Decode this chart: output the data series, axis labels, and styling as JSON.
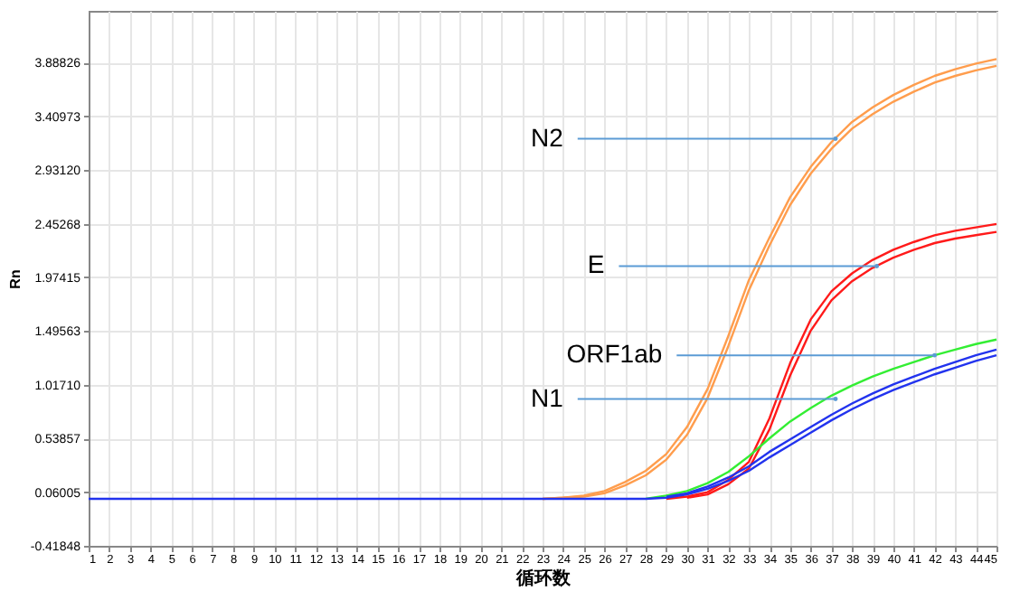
{
  "chart_data": {
    "type": "line",
    "xlabel": "循环数",
    "ylabel": "Rn",
    "x": [
      1,
      2,
      3,
      4,
      5,
      6,
      7,
      8,
      9,
      10,
      11,
      12,
      13,
      14,
      15,
      16,
      17,
      18,
      19,
      20,
      21,
      22,
      23,
      24,
      25,
      26,
      27,
      28,
      29,
      30,
      31,
      32,
      33,
      34,
      35,
      36,
      37,
      38,
      39,
      40,
      41,
      42,
      43,
      44,
      45
    ],
    "series": [
      {
        "color": "#ff9d4d",
        "values": [
          null,
          null,
          null,
          null,
          null,
          null,
          null,
          null,
          null,
          null,
          null,
          null,
          null,
          null,
          null,
          null,
          null,
          null,
          null,
          null,
          null,
          null,
          0,
          0.01,
          0.03,
          0.07,
          0.15,
          0.25,
          0.4,
          0.64,
          0.98,
          1.45,
          1.95,
          2.33,
          2.69,
          2.96,
          3.18,
          3.36,
          3.49,
          3.6,
          3.69,
          3.77,
          3.83,
          3.88,
          3.92
        ]
      },
      {
        "color": "#ff9d4d",
        "values": [
          null,
          null,
          null,
          null,
          null,
          null,
          null,
          null,
          null,
          null,
          null,
          null,
          null,
          null,
          null,
          null,
          null,
          null,
          null,
          null,
          null,
          null,
          0,
          0.01,
          0.02,
          0.05,
          0.12,
          0.21,
          0.35,
          0.57,
          0.9,
          1.36,
          1.86,
          2.26,
          2.62,
          2.9,
          3.12,
          3.3,
          3.43,
          3.54,
          3.63,
          3.71,
          3.77,
          3.82,
          3.86
        ]
      },
      {
        "color": "#ff1a1a",
        "values": [
          null,
          null,
          null,
          null,
          null,
          null,
          null,
          null,
          null,
          null,
          null,
          null,
          null,
          null,
          null,
          null,
          null,
          null,
          null,
          null,
          null,
          null,
          null,
          null,
          null,
          null,
          null,
          null,
          0,
          0.02,
          0.06,
          0.17,
          0.33,
          0.72,
          1.21,
          1.6,
          1.85,
          2.01,
          2.13,
          2.22,
          2.29,
          2.35,
          2.39,
          2.42,
          2.45
        ]
      },
      {
        "color": "#ff1a1a",
        "values": [
          null,
          null,
          null,
          null,
          null,
          null,
          null,
          null,
          null,
          null,
          null,
          null,
          null,
          null,
          null,
          null,
          null,
          null,
          null,
          null,
          null,
          null,
          null,
          null,
          null,
          null,
          null,
          null,
          null,
          0.01,
          0.04,
          0.13,
          0.27,
          0.62,
          1.1,
          1.5,
          1.77,
          1.94,
          2.06,
          2.15,
          2.22,
          2.28,
          2.32,
          2.35,
          2.38
        ]
      },
      {
        "color": "#33ee33",
        "values": [
          null,
          null,
          null,
          null,
          null,
          null,
          null,
          null,
          null,
          null,
          null,
          null,
          null,
          null,
          null,
          null,
          null,
          null,
          null,
          null,
          null,
          null,
          null,
          null,
          null,
          null,
          null,
          0,
          0.03,
          0.07,
          0.14,
          0.24,
          0.38,
          0.54,
          0.69,
          0.81,
          0.92,
          1.01,
          1.09,
          1.16,
          1.22,
          1.28,
          1.33,
          1.38,
          1.42
        ]
      },
      {
        "color": "#2233ee",
        "values": [
          null,
          null,
          null,
          null,
          null,
          null,
          null,
          null,
          null,
          null,
          null,
          null,
          null,
          null,
          null,
          null,
          null,
          null,
          null,
          null,
          null,
          null,
          null,
          null,
          null,
          null,
          null,
          null,
          0.02,
          0.05,
          0.11,
          0.19,
          0.29,
          0.42,
          0.53,
          0.64,
          0.75,
          0.85,
          0.94,
          1.02,
          1.09,
          1.16,
          1.22,
          1.28,
          1.33
        ]
      },
      {
        "color": "#2233ee",
        "values": [
          0,
          0,
          0,
          0,
          0,
          0,
          0,
          0,
          0,
          0,
          0,
          0,
          0,
          0,
          0,
          0,
          0,
          0,
          0,
          0,
          0,
          0,
          0,
          0,
          0,
          0,
          0,
          0,
          0.01,
          0.04,
          0.09,
          0.16,
          0.25,
          0.37,
          0.48,
          0.59,
          0.7,
          0.8,
          0.89,
          0.97,
          1.04,
          1.11,
          1.17,
          1.23,
          1.28
        ]
      }
    ],
    "xlim": [
      1,
      45
    ],
    "xticks": [
      1,
      2,
      3,
      4,
      5,
      6,
      7,
      8,
      9,
      10,
      11,
      12,
      13,
      14,
      15,
      16,
      17,
      18,
      19,
      20,
      21,
      22,
      23,
      24,
      25,
      26,
      27,
      28,
      29,
      30,
      31,
      32,
      33,
      34,
      35,
      36,
      37,
      38,
      39,
      40,
      41,
      42,
      43,
      44,
      45
    ],
    "ylim": [
      -0.41848,
      4.35
    ],
    "yticks": [
      -0.41848,
      0.06005,
      0.53857,
      {
        "value": 1.0171,
        "label": "1.01710"
      },
      1.49563,
      1.97415,
      2.45268,
      {
        "value": 2.9312,
        "label": "2.93120"
      },
      3.40973,
      3.88826
    ],
    "annotations": [
      {
        "text": "N2",
        "x": 37.2,
        "y": 3.21
      },
      {
        "text": "E",
        "x": 39.2,
        "y": 2.075
      },
      {
        "text": "ORF1ab",
        "x": 42,
        "y": 1.28
      },
      {
        "text": "N1",
        "x": 37.2,
        "y": 0.89
      }
    ],
    "grid": true,
    "marker": "none",
    "line_style": "solid"
  }
}
